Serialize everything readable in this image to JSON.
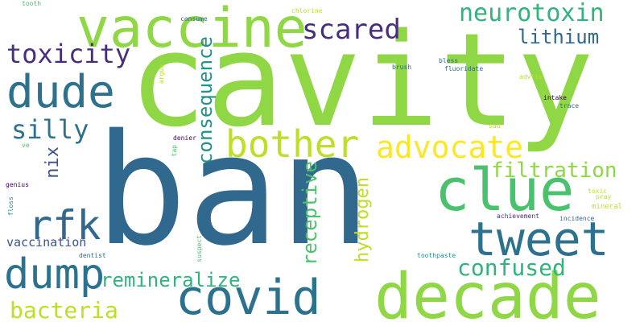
{
  "palette": {
    "light_green": "#8fd744",
    "yellow_green": "#bddf26",
    "yellow": "#fde725",
    "green": "#4ac16d",
    "teal_green": "#2fb47c",
    "teal": "#21918c",
    "blue_teal": "#2c728e",
    "blue": "#31688e",
    "indigo": "#3b528b",
    "dark_purple": "#472d7b",
    "deep_purple": "#440154"
  },
  "words": {
    "cavity": "cavity",
    "ban": "ban",
    "decade": "decade",
    "vaccine": "vaccine",
    "clue": "clue",
    "covid": "covid",
    "dude": "dude",
    "tweet": "tweet",
    "dump": "dump",
    "bother": "bother",
    "advocate": "advocate",
    "rfk": "rfk",
    "neurotoxin": "neurotoxin",
    "consequence": "consequence",
    "scared": "scared",
    "toxicity": "toxicity",
    "lithium": "lithium",
    "silly": "silly",
    "filtration": "filtration",
    "confused": "confused",
    "remineralize": "remineralize",
    "receptive": "receptive",
    "hydrogen": "hydrogen",
    "nix": "nix",
    "bacteria": "bacteria",
    "vaccination": "vaccination",
    "tooth": "tooth",
    "consume": "consume",
    "chlorine": "chlorine",
    "argue": "argue",
    "tap": "tap",
    "brush": "brush",
    "bless": "bless",
    "fluoridate": "fluoridate",
    "advise": "advise",
    "intake": "intake",
    "trace": "trace",
    "sad": "sad",
    "denier": "denier",
    "ve": "ve",
    "genius": "genius",
    "floss": "floss",
    "dentist": "dentist",
    "suspect": "suspect",
    "toothpaste": "toothpaste",
    "mineral": "mineral",
    "toxic": "toxic",
    "pray": "pray",
    "achievement": "achievement",
    "incidence": "incidence"
  }
}
